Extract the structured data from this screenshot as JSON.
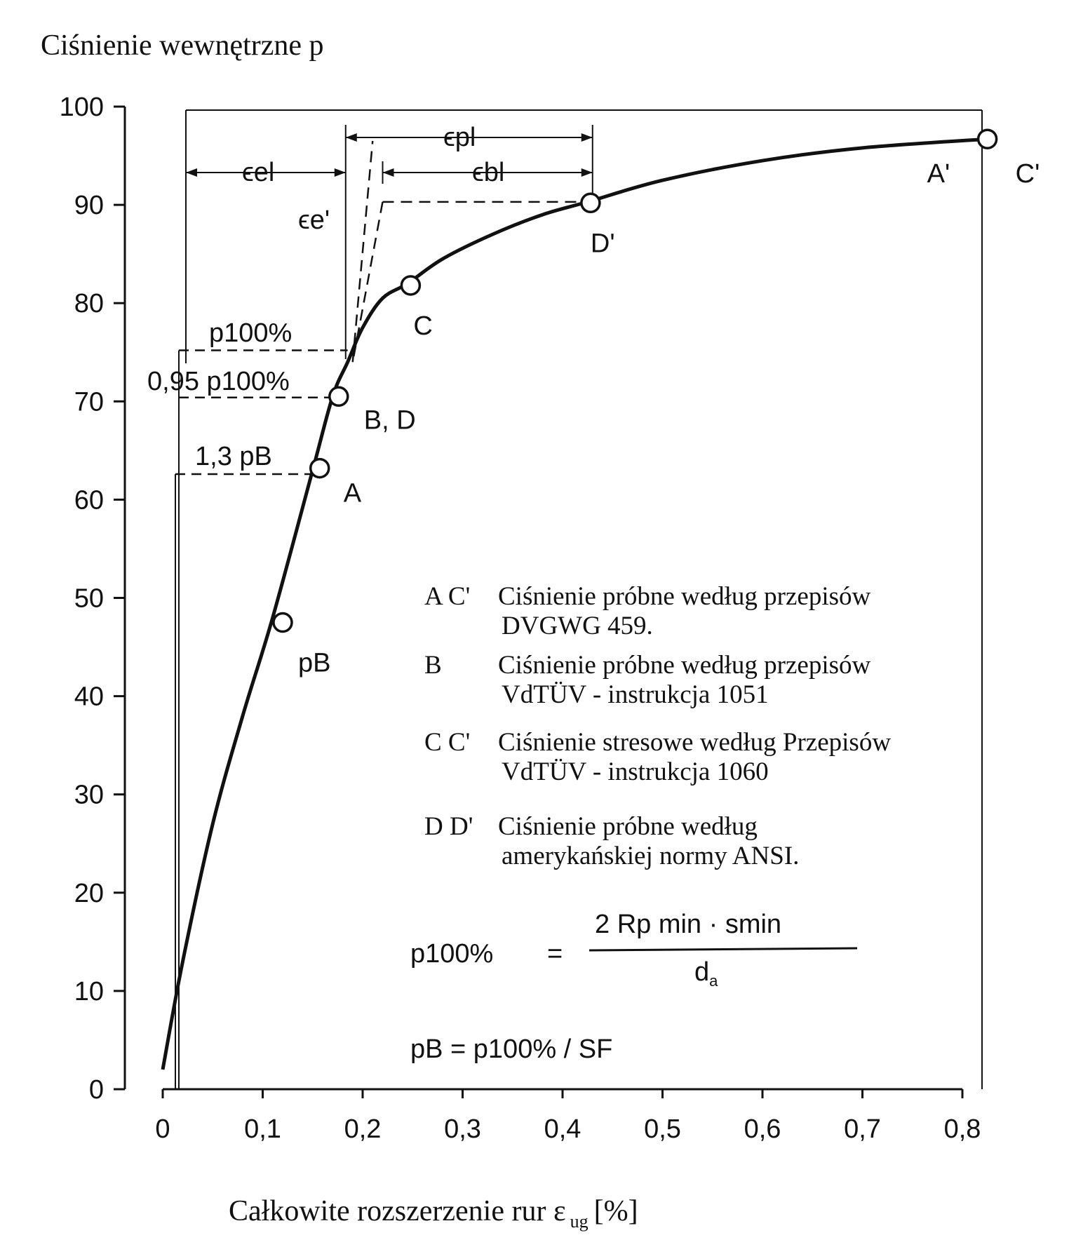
{
  "chart_data": {
    "type": "line",
    "ylabel": "Ciśnienie wewnętrzne p",
    "xlabel_main": "Całkowite rozszerzenie rur ε",
    "xlabel_sub": "ug",
    "xlabel_unit": "[%]",
    "xlim": [
      0,
      0.8
    ],
    "ylim": [
      0,
      100
    ],
    "x_ticks": [
      0,
      0.1,
      0.2,
      0.3,
      0.4,
      0.5,
      0.6,
      0.7,
      0.8
    ],
    "x_tick_labels": [
      "0",
      "0,1",
      "0,2",
      "0,3",
      "0,4",
      "0,5",
      "0,6",
      "0,7",
      "0,8"
    ],
    "y_ticks": [
      0,
      10,
      20,
      30,
      40,
      50,
      60,
      70,
      80,
      90,
      100
    ],
    "y_tick_labels": [
      "0",
      "10",
      "20",
      "30",
      "40",
      "50",
      "60",
      "70",
      "80",
      "90",
      "100"
    ],
    "grid": false,
    "curve": {
      "x": [
        0,
        0.02,
        0.05,
        0.08,
        0.11,
        0.15,
        0.17,
        0.185,
        0.2,
        0.22,
        0.245,
        0.28,
        0.33,
        0.38,
        0.425,
        0.5,
        0.6,
        0.7,
        0.825
      ],
      "y": [
        2,
        13,
        27,
        38,
        48,
        63,
        70.5,
        74,
        77.5,
        80.5,
        82,
        84.5,
        87,
        89,
        90.3,
        92.5,
        94.5,
        95.8,
        96.7
      ]
    },
    "points": [
      {
        "label": "pB",
        "x": 0.12,
        "y": 47.5
      },
      {
        "label": "A",
        "x": 0.157,
        "y": 63.2
      },
      {
        "label": "B, D",
        "x": 0.176,
        "y": 70.5
      },
      {
        "label": "C",
        "x": 0.248,
        "y": 81.8
      },
      {
        "label": "D'",
        "x": 0.428,
        "y": 90.2
      },
      {
        "label": "A'",
        "x": 0.825,
        "y": 96.7
      },
      {
        "label": "C'",
        "x": 0.825,
        "y": 96.7
      }
    ],
    "reference_levels": [
      {
        "label": "1,3 pB",
        "y": 62.6
      },
      {
        "label": "0,95 p100%",
        "y": 70.4
      },
      {
        "label": "p100%",
        "y": 75.2
      }
    ],
    "annotations": {
      "eps_pl": "ϵpl",
      "eps_el": "ϵel",
      "eps_bl": "ϵbl",
      "eps_e_prime": "ϵe'"
    },
    "legend": [
      {
        "key": "A C'",
        "lines": [
          "Ciśnienie próbne według przepisów",
          "DVGWG 459."
        ]
      },
      {
        "key": "B",
        "lines": [
          "Ciśnienie próbne według przepisów",
          "VdTÜV - instrukcja 1051"
        ]
      },
      {
        "key": "C C'",
        "lines": [
          "Ciśnienie stresowe według Przepisów",
          "VdTÜV - instrukcja 1060"
        ]
      },
      {
        "key": "D D'",
        "lines": [
          "Ciśnienie próbne według",
          "amerykańskiej normy ANSI."
        ]
      }
    ],
    "formulas": {
      "f1_lhs": "p100%",
      "f1_eq": "=",
      "f1_num": "2 Rp min · smin",
      "f1_den": "d",
      "f1_den_sub": "a",
      "f2": "pB = p100% / SF"
    }
  }
}
